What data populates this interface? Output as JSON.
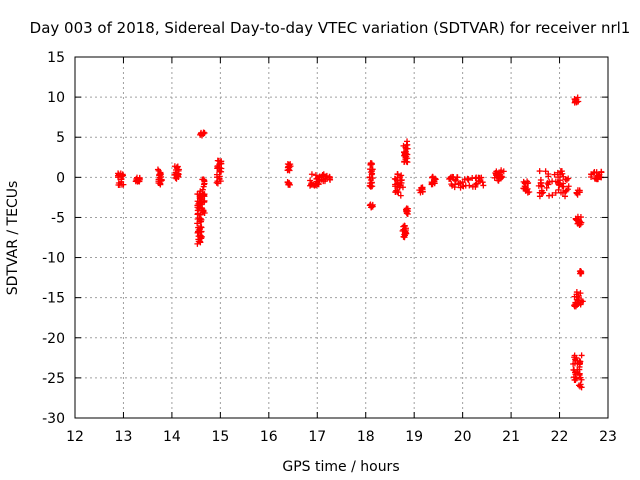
{
  "chart_data": {
    "type": "scatter",
    "title": "Day 003 of 2018, Sidereal Day-to-day VTEC variation (SDTVAR) for receiver nrl1",
    "xlabel": "GPS time / hours",
    "ylabel": "SDTVAR / TECUs",
    "xlim": [
      12,
      23
    ],
    "ylim": [
      -30,
      15
    ],
    "xticks": [
      "12",
      "13",
      "14",
      "15",
      "16",
      "17",
      "18",
      "19",
      "20",
      "21",
      "22",
      "23"
    ],
    "yticks": [
      "15",
      "10",
      "5",
      "0",
      "-5",
      "-10",
      "-15",
      "-20",
      "-25",
      "-30"
    ],
    "grid": true,
    "marker": "+",
    "marker_color": "#ff0000",
    "clusters": [
      {
        "x": [
          12.88,
          13.0
        ],
        "y": [
          -1.0,
          0.5
        ]
      },
      {
        "x": [
          13.25,
          13.35
        ],
        "y": [
          -0.8,
          0.1
        ]
      },
      {
        "x": [
          13.7,
          13.8
        ],
        "y": [
          -0.9,
          1.3
        ]
      },
      {
        "x": [
          14.05,
          14.15
        ],
        "y": [
          -0.5,
          1.4
        ]
      },
      {
        "x": [
          14.52,
          14.62
        ],
        "y": [
          -8.3,
          -2.0
        ]
      },
      {
        "x": [
          14.57,
          14.68
        ],
        "y": [
          -4.5,
          -0.2
        ]
      },
      {
        "x": [
          14.58,
          14.68
        ],
        "y": [
          5.2,
          5.7
        ]
      },
      {
        "x": [
          14.92,
          15.02
        ],
        "y": [
          -0.8,
          2.1
        ]
      },
      {
        "x": [
          16.38,
          16.45
        ],
        "y": [
          -1.0,
          -0.5
        ]
      },
      {
        "x": [
          16.38,
          16.45
        ],
        "y": [
          0.8,
          1.7
        ]
      },
      {
        "x": [
          16.85,
          17.05
        ],
        "y": [
          -1.1,
          0.5
        ]
      },
      {
        "x": [
          17.05,
          17.28
        ],
        "y": [
          -0.6,
          0.4
        ]
      },
      {
        "x": [
          18.08,
          18.15
        ],
        "y": [
          -1.2,
          1.8
        ]
      },
      {
        "x": [
          18.08,
          18.15
        ],
        "y": [
          -3.8,
          -3.3
        ]
      },
      {
        "x": [
          18.6,
          18.78
        ],
        "y": [
          -2.3,
          0.6
        ]
      },
      {
        "x": [
          18.78,
          18.88
        ],
        "y": [
          1.8,
          4.6
        ]
      },
      {
        "x": [
          18.76,
          18.86
        ],
        "y": [
          -7.5,
          -5.7
        ]
      },
      {
        "x": [
          18.8,
          18.88
        ],
        "y": [
          -4.6,
          -3.8
        ]
      },
      {
        "x": [
          19.1,
          19.18
        ],
        "y": [
          -1.9,
          -1.2
        ]
      },
      {
        "x": [
          19.35,
          19.45
        ],
        "y": [
          -1.0,
          0.2
        ]
      },
      {
        "x": [
          19.72,
          20.5
        ],
        "y": [
          -1.3,
          0.1
        ]
      },
      {
        "x": [
          20.65,
          20.85
        ],
        "y": [
          -0.8,
          0.9
        ]
      },
      {
        "x": [
          21.25,
          21.38
        ],
        "y": [
          -2.2,
          -0.5
        ]
      },
      {
        "x": [
          21.55,
          22.2
        ],
        "y": [
          -2.4,
          0.8
        ]
      },
      {
        "x": [
          22.3,
          22.4
        ],
        "y": [
          9.3,
          10.0
        ]
      },
      {
        "x": [
          22.35,
          22.42
        ],
        "y": [
          -2.2,
          -1.6
        ]
      },
      {
        "x": [
          22.33,
          22.45
        ],
        "y": [
          -6.0,
          -4.6
        ]
      },
      {
        "x": [
          22.42,
          22.48
        ],
        "y": [
          -12.1,
          -11.6
        ]
      },
      {
        "x": [
          22.3,
          22.48
        ],
        "y": [
          -16.3,
          -14.2
        ]
      },
      {
        "x": [
          22.28,
          22.46
        ],
        "y": [
          -26.2,
          -22.2
        ]
      },
      {
        "x": [
          22.65,
          22.88
        ],
        "y": [
          -0.5,
          0.7
        ]
      }
    ]
  }
}
